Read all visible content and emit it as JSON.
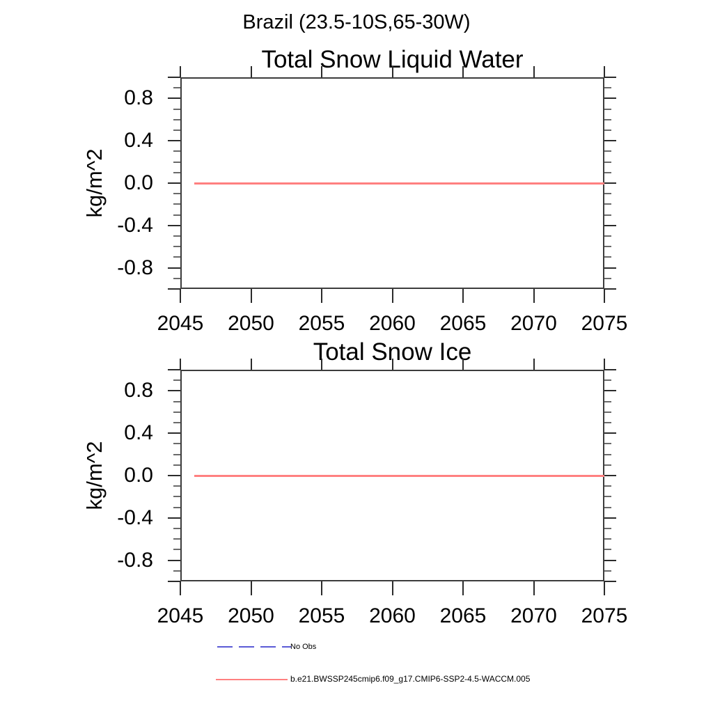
{
  "main_title": "Brazil (23.5-10S,65-30W)",
  "chart_data": [
    {
      "type": "line",
      "title": "Total Snow Liquid Water",
      "ylabel": "kg/m^2",
      "xlabel": "",
      "xlim": [
        2045,
        2075
      ],
      "ylim": [
        -1.0,
        1.0
      ],
      "grid": false,
      "xticks": [
        {
          "v": 2045,
          "label": "2045"
        },
        {
          "v": 2050,
          "label": "2050"
        },
        {
          "v": 2055,
          "label": "2055"
        },
        {
          "v": 2060,
          "label": "2060"
        },
        {
          "v": 2065,
          "label": "2065"
        },
        {
          "v": 2070,
          "label": "2070"
        },
        {
          "v": 2075,
          "label": "2075"
        }
      ],
      "yticks": [
        {
          "v": 1.0,
          "label": ""
        },
        {
          "v": 0.8,
          "label": "0.8"
        },
        {
          "v": 0.4,
          "label": "0.4"
        },
        {
          "v": 0.0,
          "label": "0.0"
        },
        {
          "v": -0.4,
          "label": "-0.4"
        },
        {
          "v": -0.8,
          "label": "-0.8"
        },
        {
          "v": -1.0,
          "label": ""
        }
      ],
      "y_minor_step": 0.1,
      "series": [
        {
          "name": "b.e21.BWSSP245cmip6.f09_g17.CMIP6-SSP2-4.5-WACCM.005",
          "color": "#ff8080",
          "x_start": 2046,
          "x_end": 2075,
          "y": 0.0
        }
      ]
    },
    {
      "type": "line",
      "title": "Total Snow Ice",
      "ylabel": "kg/m^2",
      "xlabel": "",
      "xlim": [
        2045,
        2075
      ],
      "ylim": [
        -1.0,
        1.0
      ],
      "grid": false,
      "xticks": [
        {
          "v": 2045,
          "label": "2045"
        },
        {
          "v": 2050,
          "label": "2050"
        },
        {
          "v": 2055,
          "label": "2055"
        },
        {
          "v": 2060,
          "label": "2060"
        },
        {
          "v": 2065,
          "label": "2065"
        },
        {
          "v": 2070,
          "label": "2070"
        },
        {
          "v": 2075,
          "label": "2075"
        }
      ],
      "yticks": [
        {
          "v": 1.0,
          "label": ""
        },
        {
          "v": 0.8,
          "label": "0.8"
        },
        {
          "v": 0.4,
          "label": "0.4"
        },
        {
          "v": 0.0,
          "label": "0.0"
        },
        {
          "v": -0.4,
          "label": "-0.4"
        },
        {
          "v": -0.8,
          "label": "-0.8"
        },
        {
          "v": -1.0,
          "label": ""
        }
      ],
      "y_minor_step": 0.1,
      "series": [
        {
          "name": "b.e21.BWSSP245cmip6.f09_g17.CMIP6-SSP2-4.5-WACCM.005",
          "color": "#ff8080",
          "x_start": 2046,
          "x_end": 2075,
          "y": 0.0
        }
      ]
    }
  ],
  "legend": {
    "entries": [
      {
        "label": "No Obs",
        "line_style": "dashed",
        "color": "#5a5ad6"
      },
      {
        "label": "b.e21.BWSSP245cmip6.f09_g17.CMIP6-SSP2-4.5-WACCM.005",
        "line_style": "solid",
        "color": "#ff8080"
      }
    ]
  },
  "colors": {
    "series_red": "#ff8080",
    "no_obs_blue": "#5a5ad6",
    "frame": "#3c3c3c"
  }
}
